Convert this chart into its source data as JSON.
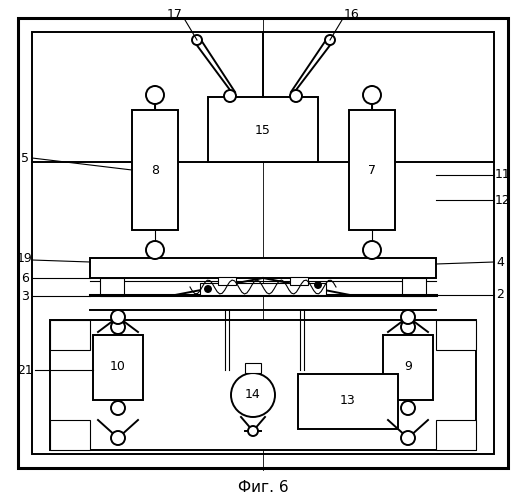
{
  "title": "Фиг. 6",
  "background": "#ffffff",
  "col": "black",
  "lw_thick": 2.2,
  "lw_main": 1.4,
  "lw_thin": 0.8,
  "fontsize": 9
}
